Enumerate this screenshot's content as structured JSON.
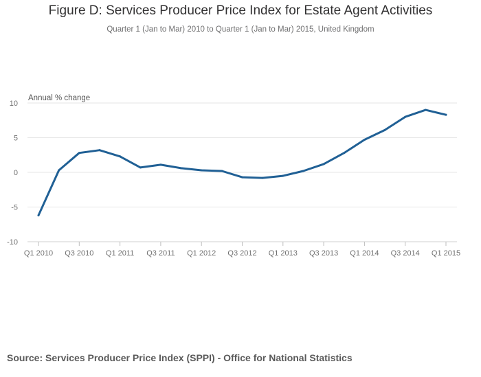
{
  "chart_data": {
    "type": "line",
    "title": "Figure D: Services Producer Price Index for Estate Agent Activities",
    "subtitle": "Quarter 1 (Jan to Mar) 2010 to Quarter 1 (Jan to Mar) 2015, United Kingdom",
    "ylabel": "Annual % change",
    "xlabel": "",
    "ylim": [
      -10,
      10
    ],
    "yticks": [
      10,
      5,
      0,
      -5,
      -10
    ],
    "ytick_labels": [
      "10",
      "5",
      "0",
      "-5",
      "-10"
    ],
    "categories": [
      "Q1 2010",
      "Q2 2010",
      "Q3 2010",
      "Q4 2010",
      "Q1 2011",
      "Q2 2011",
      "Q3 2011",
      "Q4 2011",
      "Q1 2012",
      "Q2 2012",
      "Q3 2012",
      "Q4 2012",
      "Q1 2013",
      "Q2 2013",
      "Q3 2013",
      "Q4 2013",
      "Q1 2014",
      "Q2 2014",
      "Q3 2014",
      "Q4 2014",
      "Q1 2015"
    ],
    "xtick_labels": [
      "Q1 2010",
      "Q3 2010",
      "Q1 2011",
      "Q3 2011",
      "Q1 2012",
      "Q3 2012",
      "Q1 2013",
      "Q3 2013",
      "Q1 2014",
      "Q3 2014",
      "Q1 2015"
    ],
    "series": [
      {
        "name": "Annual % change",
        "color": "#206095",
        "values": [
          -6.2,
          0.3,
          2.8,
          3.2,
          2.3,
          0.7,
          1.1,
          0.6,
          0.3,
          0.2,
          -0.7,
          -0.8,
          -0.5,
          0.2,
          1.2,
          2.8,
          4.7,
          6.1,
          8.0,
          9.0,
          8.3
        ]
      }
    ],
    "grid": true
  },
  "source": "Source: Services Producer Price Index (SPPI) - Office for National Statistics"
}
